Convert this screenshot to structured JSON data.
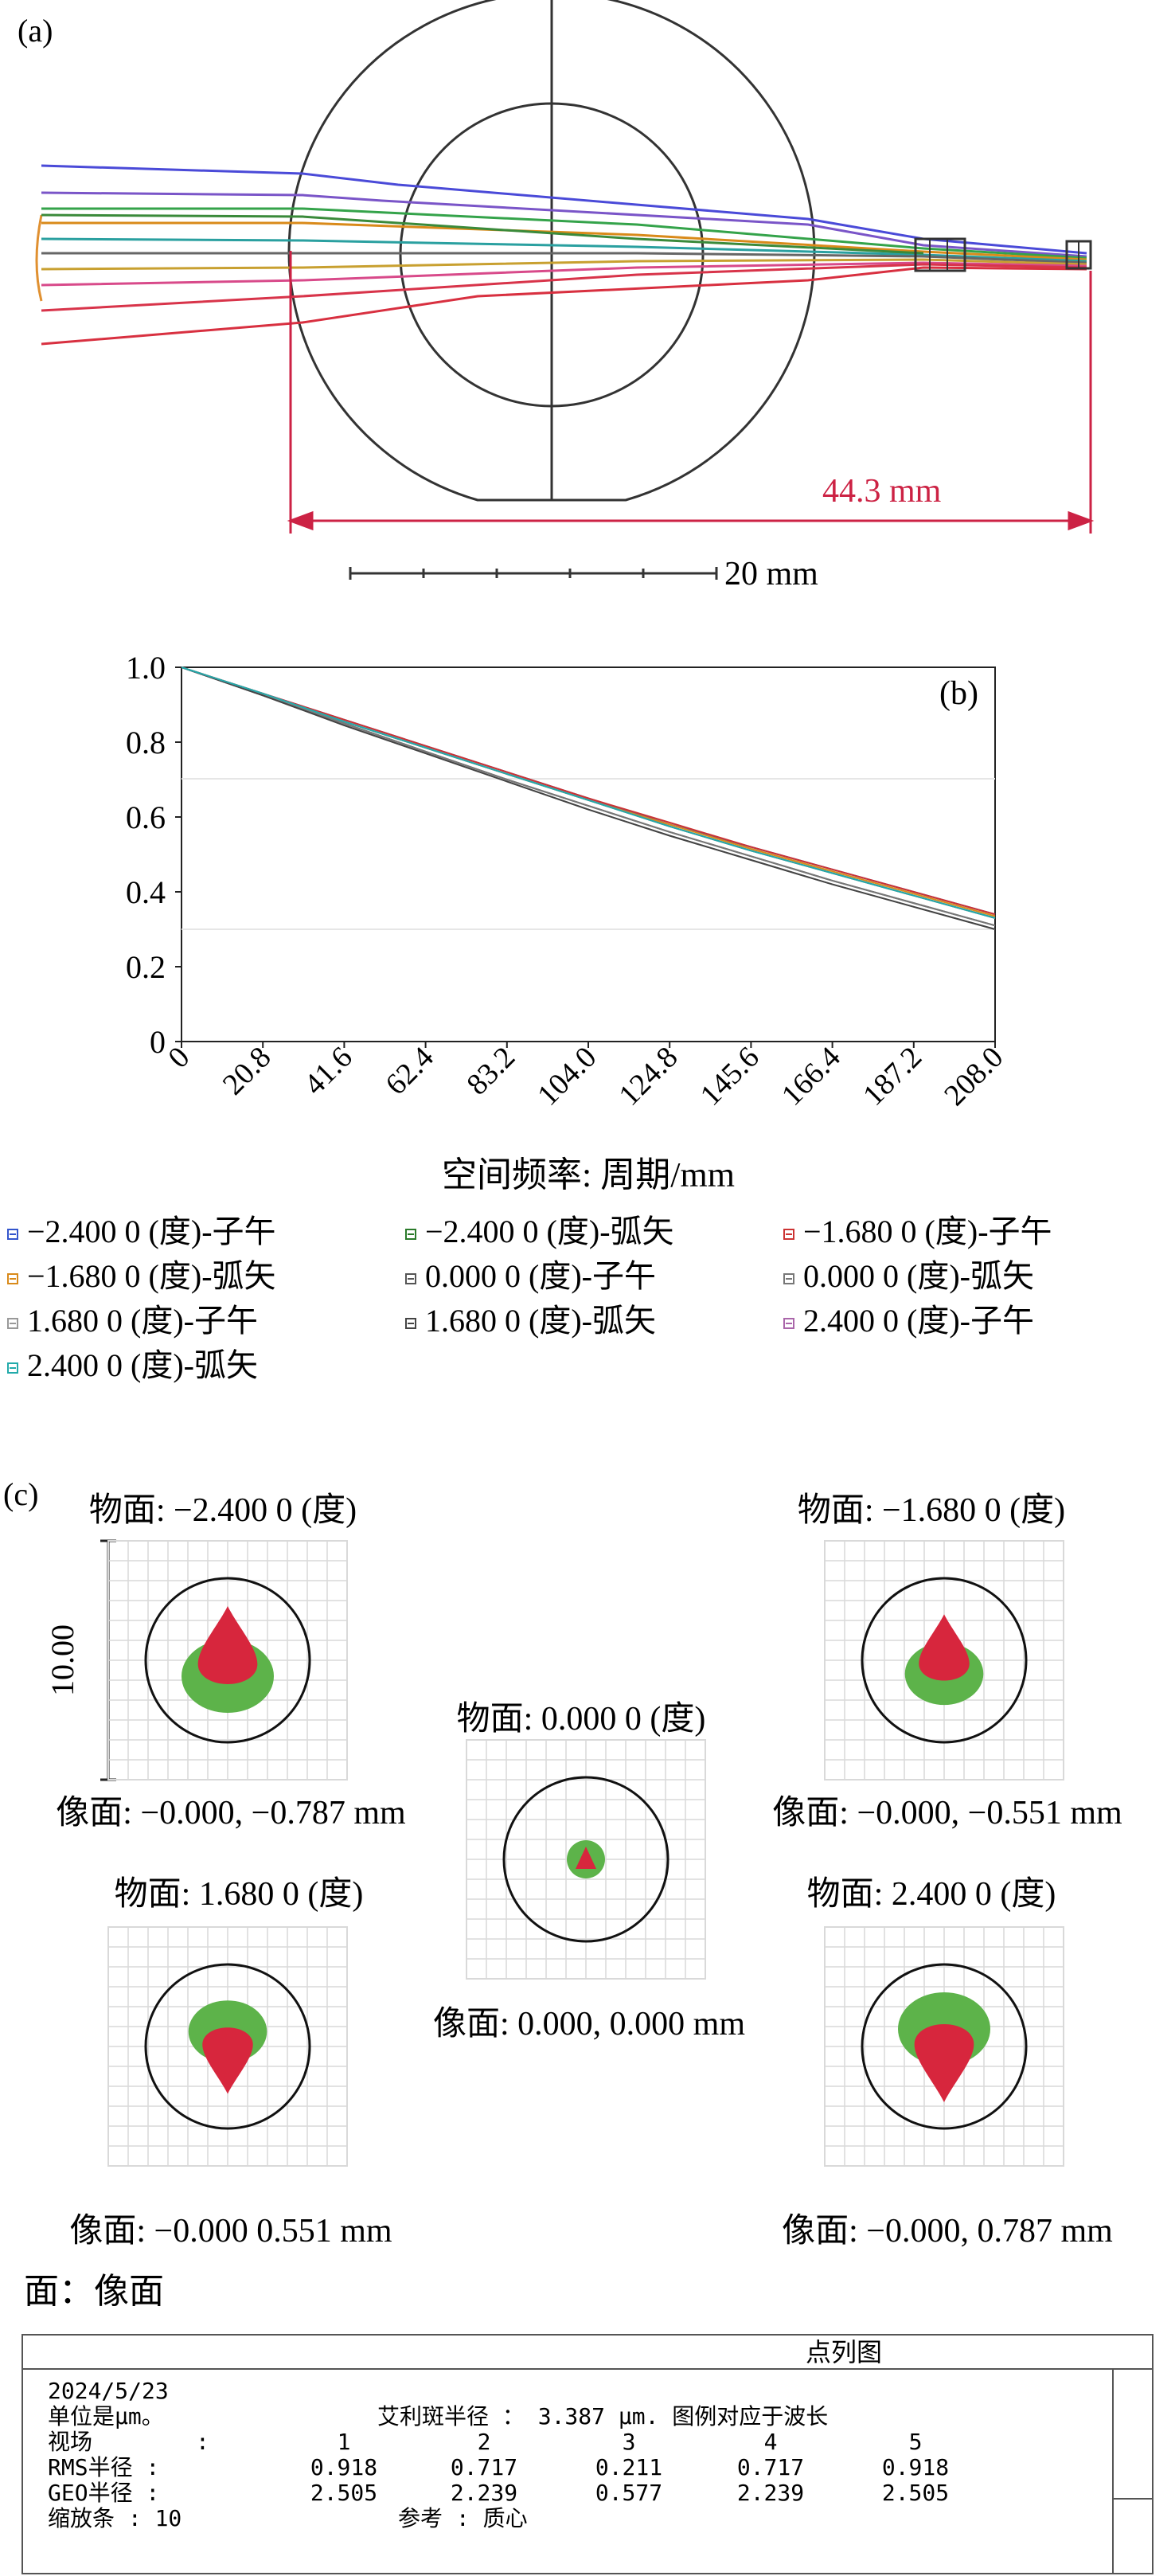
{
  "panel_a": {
    "label": "(a)",
    "dimension_label": "44.3 mm",
    "scale_label": "20 mm",
    "colors": {
      "dimension": "#cc2244",
      "outline": "#333333"
    }
  },
  "panel_b": {
    "label": "(b)"
  },
  "chart_data": {
    "type": "line",
    "title": "",
    "xlabel": "空间频率: 周期/mm",
    "ylabel": "",
    "x_ticks": [
      "0",
      "20.8",
      "41.6",
      "62.4",
      "83.2",
      "104.0",
      "124.8",
      "145.6",
      "166.4",
      "187.2",
      "208.0"
    ],
    "y_ticks": [
      "0",
      "0.2",
      "0.4",
      "0.6",
      "0.8",
      "1.0"
    ],
    "xlim": [
      0,
      208
    ],
    "ylim": [
      0,
      1.0
    ],
    "grid": false,
    "legend_position": "bottom",
    "series": [
      {
        "name": "−2.400 0 (度)-子午",
        "color": "#3355cc",
        "x": [
          0,
          20.8,
          41.6,
          62.4,
          83.2,
          104,
          124.8,
          145.6,
          166.4,
          187.2,
          208
        ],
        "y": [
          1.0,
          0.93,
          0.86,
          0.79,
          0.72,
          0.65,
          0.58,
          0.52,
          0.46,
          0.4,
          0.34
        ]
      },
      {
        "name": "−2.400 0 (度)-弧矢",
        "color": "#2a7a2a",
        "x": [
          0,
          20.8,
          41.6,
          62.4,
          83.2,
          104,
          124.8,
          145.6,
          166.4,
          187.2,
          208
        ],
        "y": [
          1.0,
          0.93,
          0.855,
          0.785,
          0.715,
          0.645,
          0.575,
          0.51,
          0.45,
          0.39,
          0.33
        ]
      },
      {
        "name": "−1.680 0 (度)-子午",
        "color": "#cc3333",
        "x": [
          0,
          20.8,
          41.6,
          62.4,
          83.2,
          104,
          124.8,
          145.6,
          166.4,
          187.2,
          208
        ],
        "y": [
          1.0,
          0.93,
          0.86,
          0.79,
          0.72,
          0.65,
          0.585,
          0.52,
          0.46,
          0.4,
          0.34
        ]
      },
      {
        "name": "−1.680 0 (度)-弧矢",
        "color": "#d98a1a",
        "x": [
          0,
          20.8,
          41.6,
          62.4,
          83.2,
          104,
          124.8,
          145.6,
          166.4,
          187.2,
          208
        ],
        "y": [
          1.0,
          0.93,
          0.855,
          0.785,
          0.715,
          0.645,
          0.58,
          0.515,
          0.455,
          0.395,
          0.335
        ]
      },
      {
        "name": "0.000 0 (度)-子午",
        "color": "#555555",
        "x": [
          0,
          20.8,
          41.6,
          62.4,
          83.2,
          104,
          124.8,
          145.6,
          166.4,
          187.2,
          208
        ],
        "y": [
          1.0,
          0.925,
          0.85,
          0.775,
          0.7,
          0.63,
          0.56,
          0.495,
          0.43,
          0.37,
          0.31
        ]
      },
      {
        "name": "0.000 0 (度)-弧矢",
        "color": "#777777",
        "x": [
          0,
          20.8,
          41.6,
          62.4,
          83.2,
          104,
          124.8,
          145.6,
          166.4,
          187.2,
          208
        ],
        "y": [
          1.0,
          0.925,
          0.85,
          0.775,
          0.7,
          0.63,
          0.56,
          0.495,
          0.43,
          0.37,
          0.31
        ]
      },
      {
        "name": "1.680 0 (度)-子午",
        "color": "#999999",
        "x": [
          0,
          20.8,
          41.6,
          62.4,
          83.2,
          104,
          124.8,
          145.6,
          166.4,
          187.2,
          208
        ],
        "y": [
          1.0,
          0.925,
          0.845,
          0.77,
          0.695,
          0.62,
          0.55,
          0.485,
          0.42,
          0.36,
          0.3
        ]
      },
      {
        "name": "1.680 0 (度)-弧矢",
        "color": "#444444",
        "x": [
          0,
          20.8,
          41.6,
          62.4,
          83.2,
          104,
          124.8,
          145.6,
          166.4,
          187.2,
          208
        ],
        "y": [
          1.0,
          0.925,
          0.845,
          0.77,
          0.695,
          0.62,
          0.55,
          0.485,
          0.42,
          0.36,
          0.3
        ]
      },
      {
        "name": "2.400 0 (度)-子午",
        "color": "#aa66aa",
        "x": [
          0,
          20.8,
          41.6,
          62.4,
          83.2,
          104,
          124.8,
          145.6,
          166.4,
          187.2,
          208
        ],
        "y": [
          1.0,
          0.93,
          0.855,
          0.785,
          0.715,
          0.645,
          0.575,
          0.51,
          0.45,
          0.39,
          0.33
        ]
      },
      {
        "name": "2.400 0 (度)-弧矢",
        "color": "#22aaaa",
        "x": [
          0,
          20.8,
          41.6,
          62.4,
          83.2,
          104,
          124.8,
          145.6,
          166.4,
          187.2,
          208
        ],
        "y": [
          1.0,
          0.93,
          0.855,
          0.785,
          0.715,
          0.645,
          0.575,
          0.51,
          0.45,
          0.39,
          0.33
        ]
      }
    ]
  },
  "panel_c": {
    "label": "(c)",
    "scale_label": "10.00",
    "surface_label": "面：像面",
    "colors": {
      "outer": "#5db34a",
      "inner": "#d7263d",
      "grid": "#d9d9d9",
      "circle": "#111111"
    },
    "spots": [
      {
        "object": "物面: −2.400 0 (度)",
        "image": "像面: −0.000, −0.787 mm"
      },
      {
        "object": "物面: −1.680 0 (度)",
        "image": "像面: −0.000, −0.551 mm"
      },
      {
        "object": "物面: 0.000 0 (度)",
        "image": "像面: 0.000, 0.000 mm"
      },
      {
        "object": "物面: 1.680 0 (度)",
        "image": "像面: −0.000 0.551 mm"
      },
      {
        "object": "物面: 2.400 0 (度)",
        "image": "像面: −0.000, 0.787 mm"
      }
    ]
  },
  "info_box": {
    "title": "点列图",
    "date": "2024/5/23",
    "unit": "单位是μm。",
    "airy": "艾利斑半径 ： 3.387 μm. 图例对应于波长",
    "field_label": "视场",
    "field_colon": ":",
    "fields": [
      "1",
      "2",
      "3",
      "4",
      "5"
    ],
    "rms_label": "RMS半径 :",
    "rms": [
      "0.918",
      "0.717",
      "0.211",
      "0.717",
      "0.918"
    ],
    "geo_label": "GEO半径 :",
    "geo": [
      "2.505",
      "2.239",
      "0.577",
      "2.239",
      "2.505"
    ],
    "scale_bar": "缩放条  : 10",
    "reference": "参考  : 质心"
  }
}
